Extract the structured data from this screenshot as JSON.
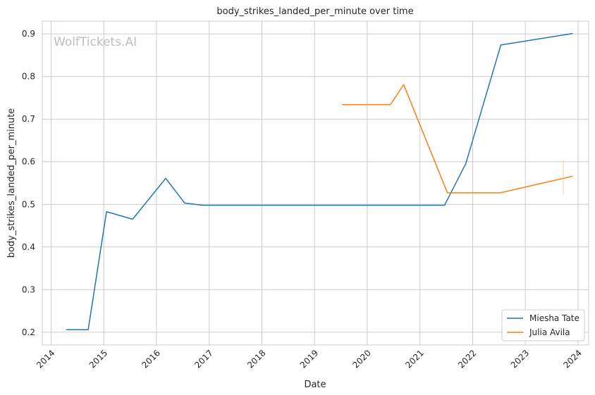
{
  "watermark": "WolfTickets.AI",
  "chart_data": {
    "type": "line",
    "title": "body_strikes_landed_per_minute over time",
    "xlabel": "Date",
    "ylabel": "body_strikes_landed_per_minute",
    "xlim": [
      "2013-11-01",
      "2024-03-15"
    ],
    "ylim": [
      0.17,
      0.93
    ],
    "x_ticks": [
      "2014",
      "2015",
      "2016",
      "2017",
      "2018",
      "2019",
      "2020",
      "2021",
      "2022",
      "2023",
      "2024"
    ],
    "y_ticks": [
      "0.2",
      "0.3",
      "0.4",
      "0.5",
      "0.6",
      "0.7",
      "0.8",
      "0.9"
    ],
    "grid": true,
    "legend_position": "lower-right",
    "series": [
      {
        "name": "Miesha Tate",
        "color": "#1f77b4",
        "points": [
          [
            "2014-04-15",
            0.206
          ],
          [
            "2014-09-15",
            0.206
          ],
          [
            "2015-01-20",
            0.483
          ],
          [
            "2015-07-20",
            0.465
          ],
          [
            "2016-03-05",
            0.561
          ],
          [
            "2016-07-15",
            0.503
          ],
          [
            "2016-11-15",
            0.498
          ],
          [
            "2021-06-20",
            0.498
          ],
          [
            "2021-11-15",
            0.596
          ],
          [
            "2022-07-15",
            0.874
          ],
          [
            "2023-11-25",
            0.901
          ]
        ]
      },
      {
        "name": "Julia Avila",
        "color": "#ff7f0e",
        "points": [
          [
            "2019-07-10",
            0.734
          ],
          [
            "2020-06-10",
            0.734
          ],
          [
            "2020-09-10",
            0.781
          ],
          [
            "2021-07-10",
            0.527
          ],
          [
            "2022-07-10",
            0.527
          ],
          [
            "2023-11-25",
            0.566
          ]
        ]
      }
    ]
  }
}
